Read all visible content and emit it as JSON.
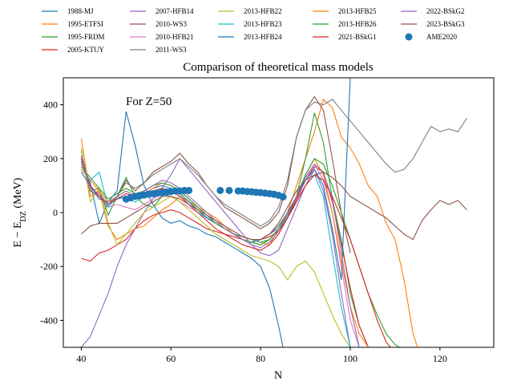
{
  "chart_data": {
    "type": "line",
    "title": "Comparison of theoretical mass models",
    "xlabel": "N",
    "ylabel": "E − E_DZ (MeV)",
    "xlim": [
      36,
      132
    ],
    "ylim": [
      -500,
      500
    ],
    "xticks": [
      40,
      60,
      80,
      100,
      120
    ],
    "yticks": [
      -400,
      -200,
      0,
      200,
      400
    ],
    "annotation": "For Z=50",
    "legend_position": "top (above plot, 5 columns)",
    "series": [
      {
        "name": "1988-MJ",
        "color": "#1f77b4",
        "x": [
          40,
          42,
          44,
          46,
          48,
          50,
          52,
          54,
          56,
          58,
          60,
          62,
          64,
          66,
          68,
          70,
          72,
          74,
          76,
          78,
          80,
          82,
          84,
          85
        ],
        "y": [
          190,
          110,
          -40,
          40,
          80,
          375,
          250,
          100,
          30,
          -20,
          -40,
          -30,
          -50,
          -60,
          -80,
          -90,
          -110,
          -130,
          -150,
          -170,
          -200,
          -280,
          -420,
          -500
        ]
      },
      {
        "name": "1995-ETFSI",
        "color": "#ff7f0e",
        "x": [
          40,
          42,
          44,
          46,
          48,
          50,
          52,
          54,
          56,
          58,
          60,
          62,
          64,
          66,
          68,
          70,
          72,
          74,
          76,
          78,
          80,
          82,
          84,
          86,
          88,
          90,
          92,
          94,
          96,
          98,
          100,
          102,
          104,
          106,
          108,
          110,
          112,
          114,
          115
        ],
        "y": [
          275,
          60,
          80,
          -50,
          -100,
          -80,
          -60,
          -50,
          -20,
          10,
          30,
          60,
          40,
          20,
          0,
          -20,
          -50,
          -80,
          -90,
          -100,
          -110,
          -120,
          -60,
          0,
          100,
          200,
          300,
          420,
          390,
          280,
          240,
          180,
          100,
          60,
          -40,
          -100,
          -250,
          -450,
          -500
        ]
      },
      {
        "name": "1995-FRDM",
        "color": "#2ca02c",
        "x": [
          40,
          42,
          44,
          46,
          48,
          50,
          52,
          54,
          56,
          58,
          60,
          62,
          64,
          66,
          68,
          70,
          72,
          74,
          76,
          78,
          80,
          82,
          84,
          86,
          88,
          90,
          92,
          94,
          96,
          98,
          100,
          102,
          104
        ],
        "y": [
          230,
          80,
          90,
          -10,
          60,
          130,
          60,
          30,
          20,
          60,
          80,
          70,
          40,
          10,
          -20,
          -40,
          -60,
          -80,
          -90,
          -100,
          -110,
          -100,
          -60,
          -20,
          60,
          200,
          370,
          260,
          50,
          -100,
          -300,
          -420,
          -500
        ]
      },
      {
        "name": "2005-KTUY",
        "color": "#d62728",
        "x": [
          40,
          42,
          44,
          46,
          48,
          50,
          52,
          54,
          56,
          58,
          60,
          62,
          64,
          66,
          68,
          70,
          72,
          74,
          76,
          78,
          80,
          82,
          84,
          86,
          88,
          90,
          92,
          94,
          96,
          98,
          100,
          102,
          104
        ],
        "y": [
          -170,
          -180,
          -150,
          -140,
          -120,
          -100,
          -60,
          -30,
          -10,
          0,
          10,
          0,
          -20,
          -40,
          -60,
          -70,
          -80,
          -90,
          -100,
          -110,
          -100,
          -90,
          -70,
          -20,
          50,
          120,
          170,
          150,
          40,
          -120,
          -280,
          -420,
          -500
        ]
      },
      {
        "name": "2007-HFB14",
        "color": "#9467bd",
        "x": [
          40,
          42,
          44,
          46,
          48,
          50,
          52,
          54,
          56,
          58,
          60,
          62,
          64,
          66,
          68,
          70,
          72,
          74,
          76,
          78,
          80,
          82,
          84,
          86,
          88,
          90,
          92,
          94,
          96,
          98,
          100
        ],
        "y": [
          -500,
          -460,
          -380,
          -300,
          -200,
          -120,
          -60,
          0,
          50,
          90,
          140,
          200,
          160,
          120,
          80,
          40,
          0,
          -40,
          -80,
          -120,
          -150,
          -160,
          -140,
          -60,
          20,
          100,
          160,
          80,
          -80,
          -300,
          -500
        ]
      },
      {
        "name": "2010-WS3",
        "color": "#8c564b",
        "x": [
          40,
          42,
          44,
          46,
          48,
          50,
          52,
          54,
          56,
          58,
          60,
          62,
          64,
          66,
          68,
          70,
          72,
          74,
          76,
          78,
          80,
          82,
          84,
          86,
          88,
          90,
          92,
          94,
          96,
          98,
          100
        ],
        "y": [
          210,
          80,
          60,
          20,
          60,
          120,
          80,
          110,
          150,
          170,
          190,
          220,
          180,
          150,
          100,
          60,
          20,
          0,
          -20,
          -40,
          -60,
          -40,
          0,
          100,
          280,
          380,
          430,
          380,
          200,
          0,
          -150
        ]
      },
      {
        "name": "2010-HFB21",
        "color": "#e377c2",
        "x": [
          40,
          42,
          44,
          46,
          48,
          50,
          52,
          54,
          56,
          58,
          60,
          62,
          64,
          66,
          68,
          70,
          72,
          74,
          76,
          78,
          80,
          82,
          84,
          86,
          88,
          90,
          92,
          94,
          96,
          98,
          100,
          102
        ],
        "y": [
          180,
          100,
          60,
          20,
          30,
          20,
          10,
          30,
          50,
          70,
          60,
          40,
          20,
          0,
          -20,
          -40,
          -60,
          -80,
          -100,
          -110,
          -100,
          -80,
          -60,
          -20,
          40,
          120,
          180,
          120,
          0,
          -200,
          -400,
          -500
        ]
      },
      {
        "name": "2011-WS3",
        "color": "#7f7f7f",
        "x": [
          40,
          42,
          44,
          46,
          48,
          50,
          52,
          54,
          56,
          58,
          60,
          62,
          64,
          66,
          68,
          70,
          72,
          74,
          76,
          78,
          80,
          82,
          84,
          86,
          88,
          90,
          92,
          94,
          96,
          98,
          100,
          102,
          104,
          106,
          108,
          110,
          112,
          114,
          116,
          118,
          120,
          122,
          124,
          126
        ],
        "y": [
          200,
          80,
          60,
          20,
          60,
          110,
          90,
          110,
          140,
          160,
          180,
          200,
          170,
          140,
          100,
          60,
          30,
          10,
          -10,
          -30,
          -50,
          -30,
          20,
          120,
          280,
          380,
          410,
          400,
          420,
          380,
          340,
          300,
          260,
          220,
          180,
          150,
          160,
          200,
          260,
          320,
          300,
          310,
          300,
          350
        ]
      },
      {
        "name": "2013-HFB22",
        "color": "#bcbd22",
        "x": [
          40,
          42,
          44,
          46,
          48,
          50,
          52,
          54,
          56,
          58,
          60,
          62,
          64,
          66,
          68,
          70,
          72,
          74,
          76,
          78,
          80,
          82,
          84,
          86,
          88,
          90,
          92,
          94,
          96,
          98,
          100
        ],
        "y": [
          240,
          40,
          90,
          -40,
          -120,
          -80,
          -40,
          0,
          20,
          40,
          60,
          40,
          10,
          -20,
          -50,
          -80,
          -100,
          -120,
          -140,
          -160,
          -170,
          -180,
          -200,
          -250,
          -200,
          -180,
          -220,
          -300,
          -380,
          -450,
          -500
        ]
      },
      {
        "name": "2013-HFB23",
        "color": "#17becf",
        "x": [
          40,
          42,
          44,
          46,
          48,
          50,
          52,
          54,
          56,
          58,
          60,
          62,
          64,
          66,
          68,
          70,
          72,
          74,
          76,
          78,
          80,
          82,
          84,
          86,
          88,
          90,
          92,
          94,
          96,
          98,
          100
        ],
        "y": [
          160,
          120,
          150,
          20,
          60,
          50,
          40,
          60,
          80,
          90,
          80,
          60,
          30,
          0,
          -20,
          -40,
          -60,
          -80,
          -100,
          -110,
          -120,
          -100,
          -60,
          -20,
          40,
          100,
          140,
          60,
          -150,
          -350,
          -500
        ]
      },
      {
        "name": "2013-HFB24",
        "color": "#1f77b4",
        "x": [
          40,
          42,
          44,
          46,
          48,
          50,
          52,
          54,
          56,
          58,
          60,
          62,
          64,
          66,
          68,
          70,
          72,
          74,
          76,
          78,
          80,
          82,
          84,
          86,
          88,
          90,
          92,
          94,
          96,
          98,
          100
        ],
        "y": [
          150,
          100,
          50,
          40,
          50,
          60,
          50,
          70,
          90,
          100,
          90,
          70,
          40,
          10,
          -20,
          -40,
          -60,
          -80,
          -100,
          -110,
          -100,
          -80,
          -50,
          0,
          60,
          120,
          160,
          100,
          -60,
          -250,
          500
        ]
      },
      {
        "name": "2013-HFB25",
        "color": "#ff7f0e",
        "x": [
          40,
          42,
          44,
          46,
          48,
          50,
          52,
          54,
          56,
          58,
          60,
          62,
          64,
          66,
          68,
          70,
          72,
          74,
          76,
          78,
          80,
          82,
          84,
          86,
          88,
          90,
          92,
          94,
          96,
          98,
          100,
          102,
          104
        ],
        "y": [
          160,
          120,
          80,
          40,
          60,
          80,
          60,
          70,
          90,
          110,
          100,
          80,
          50,
          20,
          -10,
          -40,
          -60,
          -80,
          -100,
          -110,
          -120,
          -100,
          -60,
          -10,
          60,
          140,
          200,
          140,
          0,
          -180,
          -350,
          -450,
          -500
        ]
      },
      {
        "name": "2013-HFB26",
        "color": "#2ca02c",
        "x": [
          40,
          42,
          44,
          46,
          48,
          50,
          52,
          54,
          56,
          58,
          60,
          62,
          64,
          66,
          68,
          70,
          72,
          74,
          76,
          78,
          80,
          82,
          84,
          86,
          88,
          90,
          92,
          94,
          96,
          98,
          100,
          102,
          104,
          106,
          108,
          110,
          111
        ],
        "y": [
          170,
          130,
          90,
          50,
          70,
          90,
          70,
          80,
          100,
          110,
          100,
          80,
          50,
          20,
          -10,
          -40,
          -60,
          -80,
          -100,
          -110,
          -120,
          -100,
          -60,
          -10,
          60,
          140,
          200,
          180,
          100,
          0,
          -100,
          -200,
          -300,
          -380,
          -450,
          -490,
          -500
        ]
      },
      {
        "name": "2021-BSkG1",
        "color": "#d62728",
        "x": [
          40,
          42,
          44,
          46,
          48,
          50,
          52,
          54,
          56,
          58,
          60,
          62,
          64,
          66,
          68,
          70,
          72,
          74,
          76,
          78,
          80,
          82,
          84,
          86,
          88,
          90,
          92,
          94,
          96,
          98,
          100,
          102,
          104,
          106,
          108,
          109
        ],
        "y": [
          200,
          100,
          60,
          30,
          50,
          70,
          60,
          70,
          80,
          90,
          80,
          60,
          30,
          0,
          -30,
          -60,
          -80,
          -100,
          -120,
          -130,
          -140,
          -120,
          -80,
          -20,
          40,
          100,
          140,
          120,
          60,
          -20,
          -100,
          -200,
          -300,
          -400,
          -480,
          -500
        ]
      },
      {
        "name": "2022-BSkG2",
        "color": "#9467bd",
        "x": [
          40,
          42,
          44,
          46,
          48,
          50,
          52,
          54,
          56,
          58,
          60,
          62,
          64,
          66,
          68,
          70,
          72,
          74,
          76,
          78,
          80,
          82,
          84,
          86,
          88,
          90,
          92,
          94,
          96,
          98,
          100,
          102
        ],
        "y": [
          210,
          90,
          70,
          30,
          60,
          80,
          60,
          80,
          100,
          120,
          110,
          90,
          60,
          30,
          0,
          -30,
          -60,
          -80,
          -100,
          -120,
          -130,
          -110,
          -70,
          -10,
          60,
          130,
          180,
          150,
          50,
          -150,
          -350,
          -500
        ]
      },
      {
        "name": "2023-BSkG3",
        "color": "#8c564b",
        "x": [
          40,
          42,
          44,
          46,
          48,
          50,
          52,
          54,
          56,
          58,
          60,
          62,
          64,
          66,
          68,
          70,
          72,
          74,
          76,
          78,
          80,
          82,
          84,
          86,
          88,
          90,
          92,
          94,
          96,
          98,
          100,
          102,
          104,
          106,
          108,
          110,
          112,
          114,
          116,
          118,
          120,
          122,
          124,
          126
        ],
        "y": [
          -80,
          -50,
          -40,
          -40,
          -40,
          -20,
          0,
          20,
          40,
          60,
          60,
          50,
          30,
          10,
          -10,
          -30,
          -50,
          -70,
          -90,
          -100,
          -100,
          -80,
          -40,
          20,
          80,
          120,
          140,
          150,
          130,
          100,
          60,
          40,
          20,
          0,
          -20,
          -50,
          -80,
          -100,
          -30,
          10,
          45,
          30,
          45,
          10
        ]
      },
      {
        "name": "AME2020",
        "color": "#1f77b4",
        "kind": "scatter",
        "x": [
          50,
          51,
          52,
          53,
          54,
          55,
          56,
          57,
          58,
          59,
          60,
          61,
          62,
          63,
          64,
          71,
          73,
          75,
          76,
          77,
          78,
          79,
          80,
          81,
          82,
          83,
          84,
          85
        ],
        "y": [
          50,
          55,
          60,
          62,
          65,
          68,
          70,
          72,
          74,
          76,
          78,
          80,
          80,
          82,
          82,
          82,
          82,
          80,
          80,
          78,
          77,
          75,
          74,
          72,
          70,
          68,
          64,
          58
        ]
      }
    ]
  }
}
